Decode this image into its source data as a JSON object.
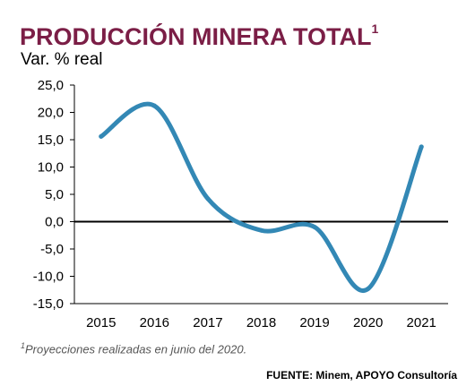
{
  "title": "PRODUCCIÓN MINERA TOTAL",
  "title_note": "1",
  "subtitle": "Var. % real",
  "footnote_mark": "1",
  "footnote": "Proyecciones realizadas en junio del 2020.",
  "source": "FUENTE: Minem, APOYO Consultoría",
  "colors": {
    "title": "#7b1e46",
    "line": "#3388b5",
    "axis": "#000000"
  },
  "chart_data": {
    "type": "line",
    "x": [
      "2015",
      "2016",
      "2017",
      "2018",
      "2019",
      "2020",
      "2021"
    ],
    "values": [
      15.6,
      21.2,
      4.2,
      -1.6,
      -1.0,
      -12.3,
      13.7
    ],
    "ylim": [
      -15,
      25
    ],
    "yticks": [
      "25,0",
      "20,0",
      "15,0",
      "10,0",
      "5,0",
      "0,0",
      "-5,0",
      "-10,0",
      "-15,0"
    ],
    "grid": false,
    "smooth": true
  }
}
